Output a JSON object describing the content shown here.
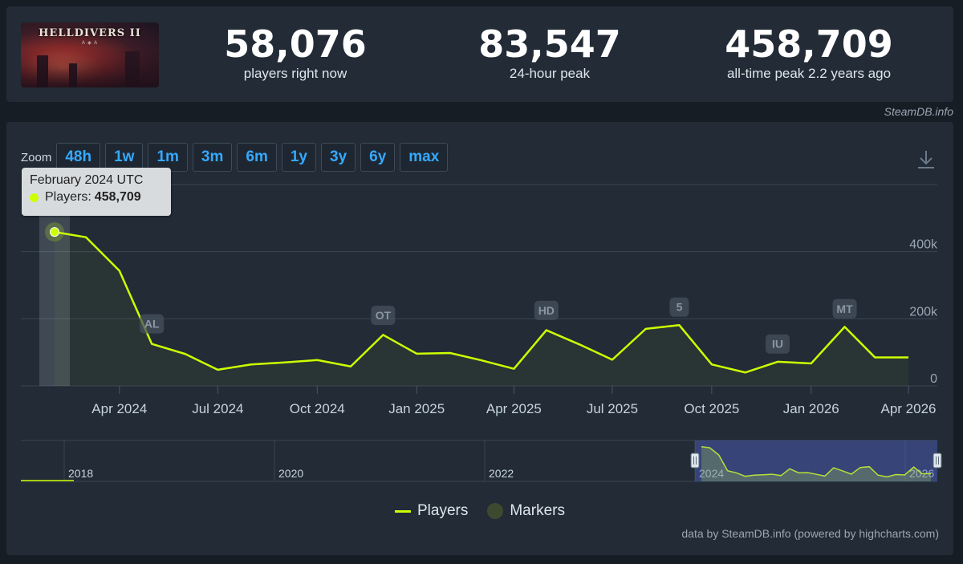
{
  "stats": [
    {
      "value": "58,076",
      "label": "players right now"
    },
    {
      "value": "83,547",
      "label": "24-hour peak"
    },
    {
      "value": "458,709",
      "label": "all-time peak 2.2 years ago"
    }
  ],
  "game_logo": {
    "title": "HELLDIVERS II",
    "subtitle": "A ◈ A"
  },
  "credit_top": "SteamDB.info",
  "zoom": {
    "label": "Zoom",
    "buttons": [
      "48h",
      "1w",
      "1m",
      "3m",
      "6m",
      "1y",
      "3y",
      "6y",
      "max"
    ]
  },
  "tooltip": {
    "title": "February 2024 UTC",
    "series": "Players:",
    "value": "458,709"
  },
  "legend": {
    "players": "Players",
    "markers": "Markers"
  },
  "credit_bottom": "data by SteamDB.info (powered by highcharts.com)",
  "colors": {
    "line": "#ccff00",
    "accent": "#35a9ff",
    "background": "#222b36"
  },
  "chart_data": {
    "type": "line",
    "title": "",
    "xlabel": "",
    "ylabel": "",
    "ylim": [
      0,
      600000
    ],
    "y_ticks": [
      {
        "value": 0,
        "label": "0"
      },
      {
        "value": 200000,
        "label": "200k"
      },
      {
        "value": 400000,
        "label": "400k"
      }
    ],
    "x_range": [
      "2024-02-01",
      "2026-04-01"
    ],
    "x_ticks": [
      {
        "date": "2024-04-01",
        "label": "Apr 2024"
      },
      {
        "date": "2024-07-01",
        "label": "Jul 2024"
      },
      {
        "date": "2024-10-01",
        "label": "Oct 2024"
      },
      {
        "date": "2025-01-01",
        "label": "Jan 2025"
      },
      {
        "date": "2025-04-01",
        "label": "Apr 2025"
      },
      {
        "date": "2025-07-01",
        "label": "Jul 2025"
      },
      {
        "date": "2025-10-01",
        "label": "Oct 2025"
      },
      {
        "date": "2026-01-01",
        "label": "Jan 2026"
      },
      {
        "date": "2026-04-01",
        "label": "Apr 2026"
      }
    ],
    "grid": true,
    "legend_position": "bottom-center",
    "series": [
      {
        "name": "Players",
        "x": [
          "2024-02-01",
          "2024-03-01",
          "2024-04-01",
          "2024-05-01",
          "2024-06-01",
          "2024-07-01",
          "2024-08-01",
          "2024-09-01",
          "2024-10-01",
          "2024-11-01",
          "2024-12-01",
          "2025-01-01",
          "2025-02-01",
          "2025-03-01",
          "2025-04-01",
          "2025-05-01",
          "2025-06-01",
          "2025-07-01",
          "2025-08-01",
          "2025-09-01",
          "2025-10-01",
          "2025-11-01",
          "2025-12-01",
          "2026-01-01",
          "2026-02-01",
          "2026-03-01",
          "2026-04-01"
        ],
        "y": [
          458709,
          443000,
          343000,
          125000,
          95000,
          48000,
          64000,
          70000,
          77000,
          58000,
          152000,
          96000,
          98000,
          77000,
          51000,
          166000,
          123000,
          78000,
          170000,
          181000,
          64000,
          40000,
          72000,
          67000,
          176000,
          85000,
          85000
        ]
      }
    ],
    "markers": [
      {
        "label": "AL",
        "date": "2024-05-01",
        "value": 185000
      },
      {
        "label": "OT",
        "date": "2024-12-01",
        "value": 210000
      },
      {
        "label": "HD",
        "date": "2025-05-01",
        "value": 225000
      },
      {
        "label": "5",
        "date": "2025-09-01",
        "value": 235000
      },
      {
        "label": "IU",
        "date": "2025-12-01",
        "value": 125000
      },
      {
        "label": "MT",
        "date": "2026-02-01",
        "value": 230000
      }
    ],
    "navigator": {
      "labels": [
        "2018",
        "2020",
        "2022",
        "2024",
        "2026"
      ]
    }
  }
}
